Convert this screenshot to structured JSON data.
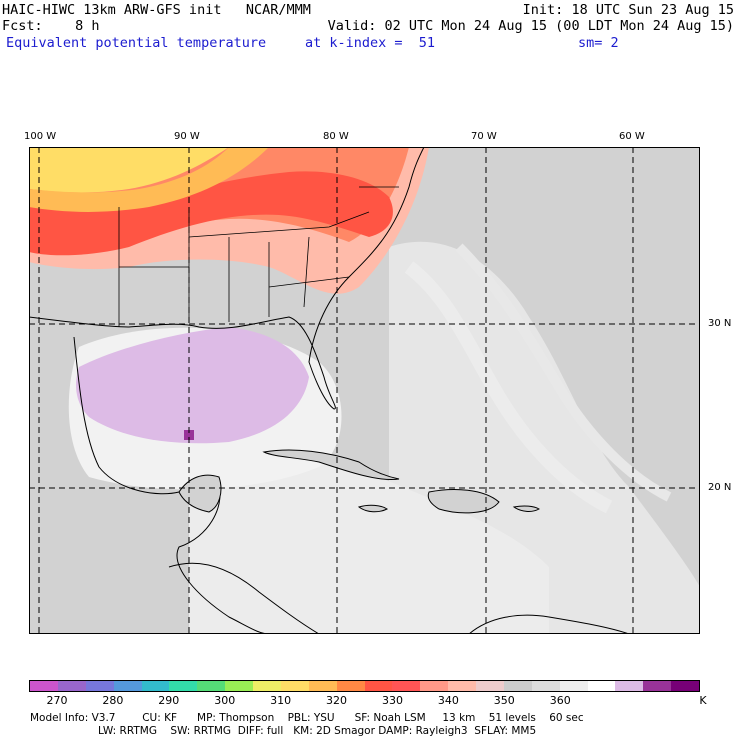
{
  "header": {
    "line1_left": "HAIC-HIWC 13km ARW-GFS init   NCAR/MMM",
    "line1_right": "Init: 18 UTC Sun 23 Aug 15",
    "line2_left": "Fcst:    8 h",
    "line2_right": "Valid: 02 UTC Mon 24 Aug 15 (00 LDT Mon 24 Aug 15)",
    "line3_field": "Equivalent potential temperature",
    "line3_level": "at k-index =  51",
    "line3_smooth": "sm= 2"
  },
  "map": {
    "longitude_labels": [
      "100 W",
      "90 W",
      "80 W",
      "70 W",
      "60 W"
    ],
    "latitude_labels": [
      "30 N",
      "20 N"
    ],
    "grid_style": "dashed",
    "projection": "regional Gulf of Mexico / Caribbean / western Atlantic",
    "fields": {
      "land_border_color": "#000000",
      "hot_region": "southeastern US / mid-Atlantic coast (≥330 K)",
      "cool_region": "Gulf of Mexico (≈360-365 K)"
    }
  },
  "colorbar": {
    "colors": [
      "#cc55cc",
      "#9966cc",
      "#7777dd",
      "#5599dd",
      "#33bbcc",
      "#33ddaa",
      "#55dd77",
      "#99ee55",
      "#eeee66",
      "#ffdd66",
      "#ffbb55",
      "#ff8844",
      "#ff5544",
      "#ff5555",
      "#ff9988",
      "#ffbbaa",
      "#eecccc",
      "#cccccc",
      "#dddddd",
      "#eeeeee",
      "#ffffff",
      "#ddbbe6",
      "#993399",
      "#770077"
    ],
    "tick_labels": [
      "270",
      "280",
      "290",
      "300",
      "310",
      "320",
      "330",
      "340",
      "350",
      "360"
    ],
    "unit": "K"
  },
  "model_info": {
    "line1": "Model Info: V3.7        CU: KF      MP: Thompson    PBL: YSU      SF: Noah LSM     13 km    51 levels    60 sec",
    "line2": "LW: RRTMG    SW: RRTMG  DIFF: full   KM: 2D Smagor DAMP: Rayleigh3  SFLAY: MM5"
  }
}
